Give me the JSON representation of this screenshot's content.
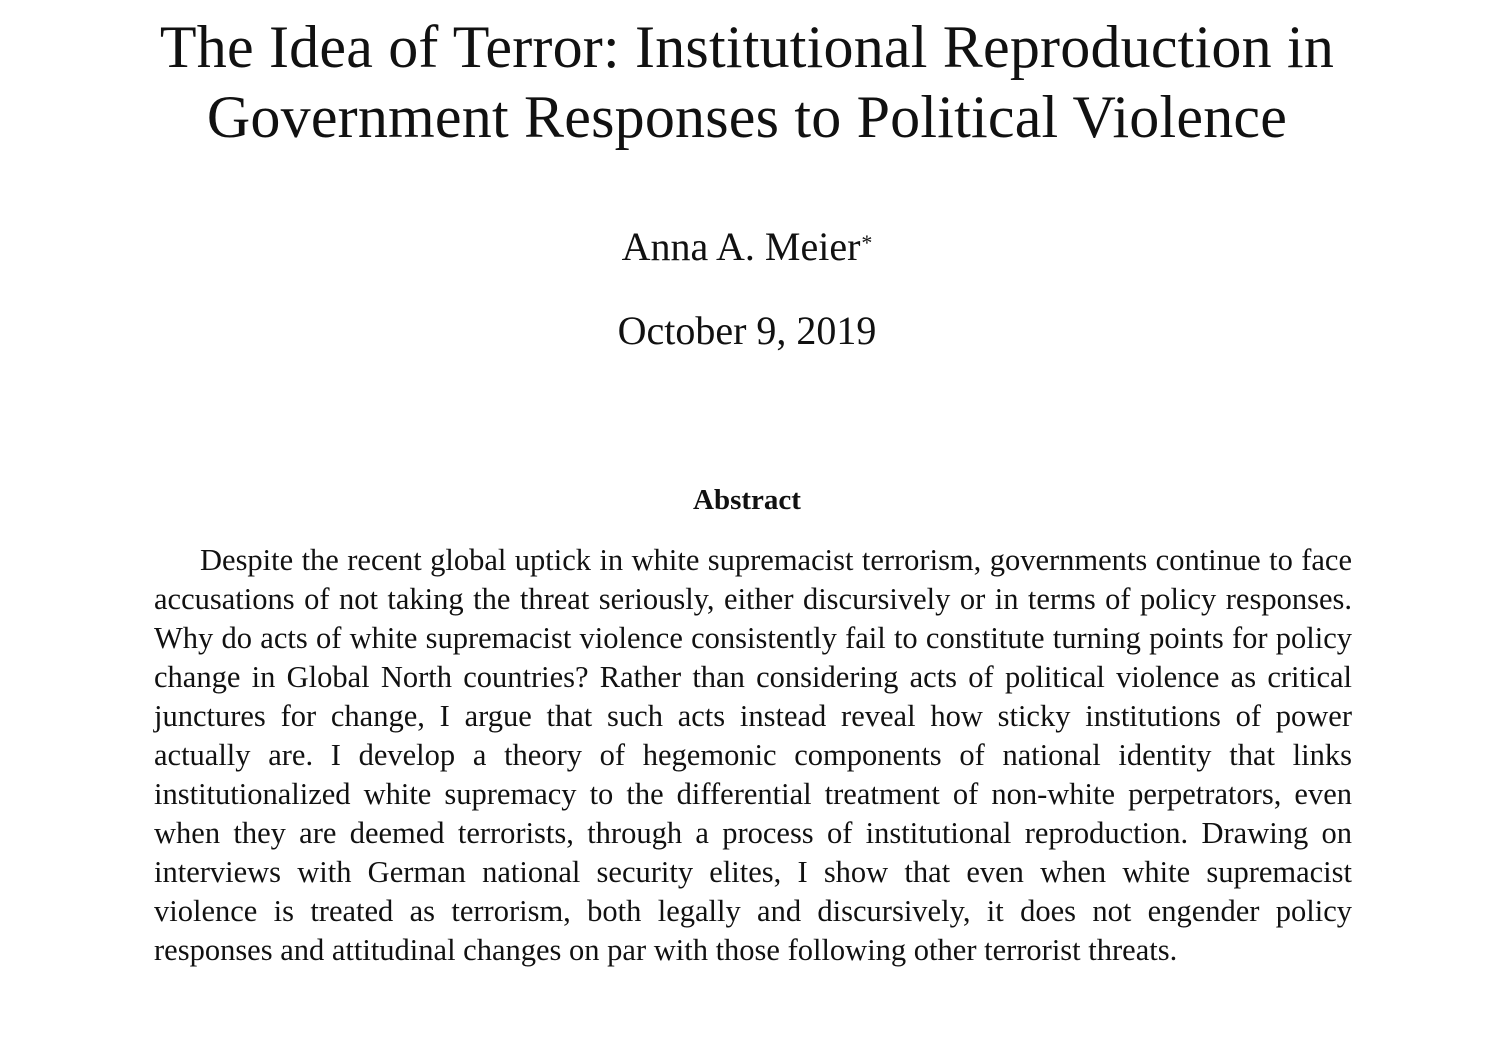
{
  "paper": {
    "title_line1": "The Idea of Terror: Institutional Reproduction in",
    "title_line2": "Government Responses to Political Violence",
    "author": "Anna A. Meier",
    "author_mark": "*",
    "date": "October 9, 2019",
    "abstract_heading": "Abstract",
    "abstract_text": "Despite the recent global uptick in white supremacist terrorism, governments continue to face accusations of not taking the threat seriously, either discursively or in terms of policy responses. Why do acts of white supremacist violence consistently fail to constitute turning points for policy change in Global North countries? Rather than considering acts of political violence as critical junctures for change, I argue that such acts instead reveal how sticky institutions of power actually are. I develop a theory of hegemonic components of national identity that links institutionalized white supremacy to the differential treatment of non-white perpetrators, even when they are deemed terrorists, through a process of institutional reproduction. Drawing on interviews with German national security elites, I show that even when white supremacist violence is treated as terrorism, both legally and discursively, it does not engender policy responses and attitudinal changes on par with those following other terrorist threats."
  }
}
